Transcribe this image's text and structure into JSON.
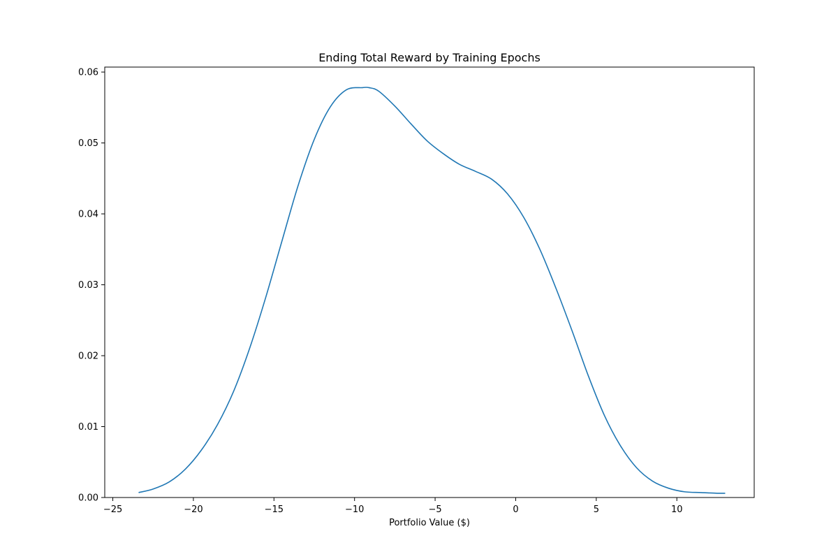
{
  "chart_data": {
    "type": "line",
    "title": "Ending Total Reward by Training Epochs",
    "xlabel": "Portfolio Value ($)",
    "ylabel": "",
    "xlim": [
      -25.5,
      14.8
    ],
    "ylim": [
      0,
      0.0607
    ],
    "x_ticks": [
      -25,
      -20,
      -15,
      -10,
      -5,
      0,
      5,
      10
    ],
    "x_tick_labels": [
      "−25",
      "−20",
      "−15",
      "−10",
      "−5",
      "0",
      "5",
      "10"
    ],
    "y_ticks": [
      0,
      0.01,
      0.02,
      0.03,
      0.04,
      0.05,
      0.06
    ],
    "y_tick_labels": [
      "0.00",
      "0.01",
      "0.02",
      "0.03",
      "0.04",
      "0.05",
      "0.06"
    ],
    "grid": false,
    "line_color": "#1f77b4",
    "series": [
      {
        "x": [
          -23.4,
          -22.5,
          -21.5,
          -20.5,
          -19.5,
          -18.5,
          -17.5,
          -16.5,
          -15.5,
          -14.5,
          -13.5,
          -12.5,
          -11.5,
          -10.5,
          -9.5,
          -9.1,
          -8.5,
          -7.5,
          -6.5,
          -5.5,
          -4.5,
          -3.5,
          -2.5,
          -1.5,
          -0.5,
          0.5,
          1.5,
          2.5,
          3.5,
          4.5,
          5.5,
          6.5,
          7.5,
          8.5,
          9.5,
          10.5,
          11.5,
          12.5,
          13.0
        ],
        "y": [
          0.0007,
          0.0012,
          0.0022,
          0.004,
          0.0067,
          0.0103,
          0.015,
          0.0211,
          0.0283,
          0.0362,
          0.044,
          0.0505,
          0.0551,
          0.0575,
          0.0578,
          0.0578,
          0.0573,
          0.0552,
          0.0527,
          0.0503,
          0.0485,
          0.047,
          0.046,
          0.0449,
          0.0428,
          0.0395,
          0.035,
          0.0295,
          0.0235,
          0.0172,
          0.0116,
          0.0073,
          0.0042,
          0.0023,
          0.0013,
          0.0008,
          0.0007,
          0.0006,
          0.0006
        ]
      }
    ]
  }
}
